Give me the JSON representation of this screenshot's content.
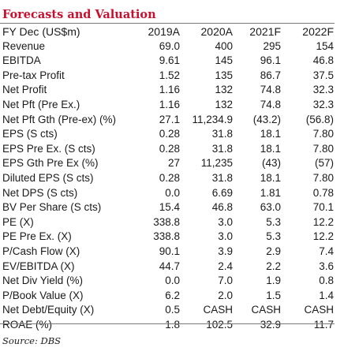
{
  "title": "Forecasts and Valuation",
  "header": {
    "label": "FY Dec (US$m)",
    "years": [
      "2019A",
      "2020A",
      "2021F",
      "2022F"
    ]
  },
  "rows": [
    {
      "label": "Revenue",
      "values": [
        "69.0",
        "400",
        "295",
        "154"
      ]
    },
    {
      "label": "EBITDA",
      "values": [
        "9.61",
        "145",
        "96.1",
        "46.8"
      ]
    },
    {
      "label": "Pre-tax Profit",
      "values": [
        "1.52",
        "135",
        "86.7",
        "37.5"
      ]
    },
    {
      "label": "Net Profit",
      "values": [
        "1.16",
        "132",
        "74.8",
        "32.3"
      ]
    },
    {
      "label": "Net Pft (Pre Ex.)",
      "values": [
        "1.16",
        "132",
        "74.8",
        "32.3"
      ]
    },
    {
      "label": "Net Pft Gth (Pre-ex) (%)",
      "values": [
        "27.1",
        "11,234.9",
        "(43.2)",
        "(56.8)"
      ]
    },
    {
      "label": "EPS (S cts)",
      "values": [
        "0.28",
        "31.8",
        "18.1",
        "7.80"
      ]
    },
    {
      "label": "EPS Pre Ex. (S cts)",
      "values": [
        "0.28",
        "31.8",
        "18.1",
        "7.80"
      ]
    },
    {
      "label": "EPS Gth Pre Ex (%)",
      "values": [
        "27",
        "11,235",
        "(43)",
        "(57)"
      ]
    },
    {
      "label": "Diluted EPS (S cts)",
      "values": [
        "0.28",
        "31.8",
        "18.1",
        "7.80"
      ]
    },
    {
      "label": "Net DPS (S cts)",
      "values": [
        "0.0",
        "6.69",
        "1.81",
        "0.78"
      ]
    },
    {
      "label": "BV Per Share (S cts)",
      "values": [
        "15.4",
        "46.8",
        "63.0",
        "70.1"
      ]
    },
    {
      "label": "PE (X)",
      "values": [
        "338.8",
        "3.0",
        "5.3",
        "12.2"
      ]
    },
    {
      "label": "PE Pre Ex. (X)",
      "values": [
        "338.8",
        "3.0",
        "5.3",
        "12.2"
      ]
    },
    {
      "label": "P/Cash Flow (X)",
      "values": [
        "90.1",
        "3.9",
        "2.9",
        "7.4"
      ]
    },
    {
      "label": "EV/EBITDA (X)",
      "values": [
        "44.7",
        "2.4",
        "2.2",
        "3.6"
      ]
    },
    {
      "label": "Net Div Yield (%)",
      "values": [
        "0.0",
        "7.0",
        "1.9",
        "0.8"
      ]
    },
    {
      "label": "P/Book Value (X)",
      "values": [
        "6.2",
        "2.0",
        "1.5",
        "1.4"
      ]
    },
    {
      "label": "Net Debt/Equity (X)",
      "values": [
        "0.5",
        "CASH",
        "CASH",
        "CASH"
      ]
    },
    {
      "label": "ROAE (%)",
      "values": [
        "1.8",
        "102.5",
        "32.9",
        "11.7"
      ]
    }
  ],
  "source": "Source: DBS",
  "colors": {
    "title": "#c8102e",
    "text": "#1a1a1a",
    "rule": "#7a7a7a"
  }
}
